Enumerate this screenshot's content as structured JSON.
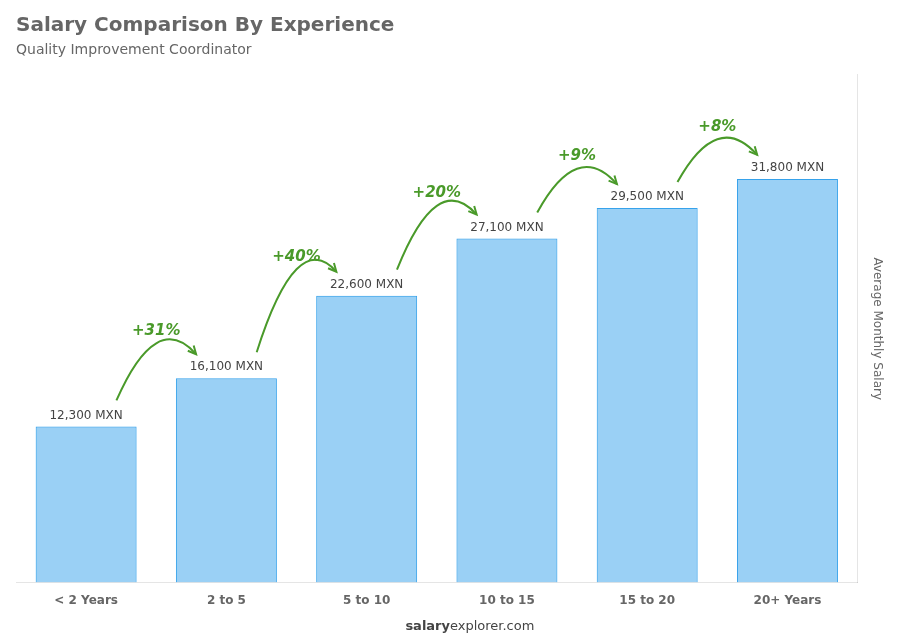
{
  "chart_data": {
    "type": "bar",
    "title": "Salary Comparison By Experience",
    "subtitle": "Quality Improvement Coordinator",
    "categories": [
      "< 2 Years",
      "2 to 5",
      "5 to 10",
      "10 to 15",
      "15 to 20",
      "20+ Years"
    ],
    "values": [
      12300,
      16100,
      22600,
      27100,
      29500,
      31800
    ],
    "value_labels": [
      "12,300 MXN",
      "16,100 MXN",
      "22,600 MXN",
      "27,100 MXN",
      "29,500 MXN",
      "31,800 MXN"
    ],
    "data_labels": true,
    "ylabel": "Average Monthly Salary",
    "ylim": [
      0,
      40000
    ],
    "tick_labels": "x",
    "grid": false,
    "annotations": [
      {
        "text": "+31%",
        "from": "< 2 Years",
        "to": "2 to 5"
      },
      {
        "text": "+40%",
        "from": "2 to 5",
        "to": "5 to 10"
      },
      {
        "text": "+20%",
        "from": "5 to 10",
        "to": "10 to 15"
      },
      {
        "text": "+9%",
        "from": "10 to 15",
        "to": "15 to 20"
      },
      {
        "text": "+8%",
        "from": "15 to 20",
        "to": "20+ Years"
      }
    ],
    "footer": {
      "bold": "salary",
      "regular": "explorer.com"
    }
  }
}
